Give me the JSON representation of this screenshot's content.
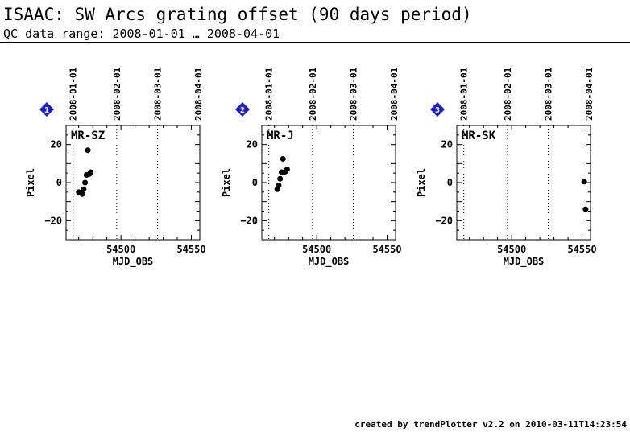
{
  "header": {
    "title": "ISAAC: SW Arcs grating offset (90 days period)",
    "subtitle": "QC data range: 2008-01-01 … 2008-04-01"
  },
  "footer": {
    "text": "created by trendPlotter v2.2 on 2010-03-11T14:23:54"
  },
  "colors": {
    "marker_badge": "#1a1adc",
    "points": "#000000"
  },
  "chart_data": [
    {
      "type": "scatter",
      "panel_number": "1",
      "label": "MR-SZ",
      "xlabel": "MJD_OBS",
      "ylabel": "Pixel",
      "xlim": [
        54461,
        54556
      ],
      "ylim": [
        -30,
        30
      ],
      "x_ticks": [
        54500,
        54550
      ],
      "y_ticks": [
        20,
        0,
        -20
      ],
      "top_axis_dates": [
        "2008-01-01",
        "2008-02-01",
        "2008-03-01",
        "2008-04-01"
      ],
      "top_axis_mjd": [
        54466,
        54497,
        54526,
        54557
      ],
      "points": [
        {
          "x": 54470,
          "y": -5
        },
        {
          "x": 54472.5,
          "y": -6
        },
        {
          "x": 54473.5,
          "y": -3.5
        },
        {
          "x": 54474.5,
          "y": 0
        },
        {
          "x": 54475.5,
          "y": 4
        },
        {
          "x": 54476.5,
          "y": 17
        },
        {
          "x": 54477.5,
          "y": 4.5
        },
        {
          "x": 54478.5,
          "y": 5.5
        }
      ]
    },
    {
      "type": "scatter",
      "panel_number": "2",
      "label": "MR-J",
      "xlabel": "MJD_OBS",
      "ylabel": "Pixel",
      "xlim": [
        54461,
        54556
      ],
      "ylim": [
        -30,
        30
      ],
      "x_ticks": [
        54500,
        54550
      ],
      "y_ticks": [
        20,
        0,
        -20
      ],
      "top_axis_dates": [
        "2008-01-01",
        "2008-02-01",
        "2008-03-01",
        "2008-04-01"
      ],
      "top_axis_mjd": [
        54466,
        54497,
        54526,
        54557
      ],
      "points": [
        {
          "x": 54472,
          "y": -3.5
        },
        {
          "x": 54473,
          "y": -1.5
        },
        {
          "x": 54474,
          "y": 2
        },
        {
          "x": 54475,
          "y": 5.5
        },
        {
          "x": 54476,
          "y": 12.5
        },
        {
          "x": 54477,
          "y": 5.5
        },
        {
          "x": 54478,
          "y": 6
        },
        {
          "x": 54479,
          "y": 7
        }
      ]
    },
    {
      "type": "scatter",
      "panel_number": "3",
      "label": "MR-SK",
      "xlabel": "MJD_OBS",
      "ylabel": "Pixel",
      "xlim": [
        54461,
        54556
      ],
      "ylim": [
        -30,
        30
      ],
      "x_ticks": [
        54500,
        54550
      ],
      "y_ticks": [
        20,
        0,
        -20
      ],
      "top_axis_dates": [
        "2008-01-01",
        "2008-02-01",
        "2008-03-01",
        "2008-04-01"
      ],
      "top_axis_mjd": [
        54466,
        54497,
        54526,
        54557
      ],
      "points": [
        {
          "x": 54551.5,
          "y": 0.5
        },
        {
          "x": 54552.5,
          "y": -14
        }
      ]
    }
  ]
}
